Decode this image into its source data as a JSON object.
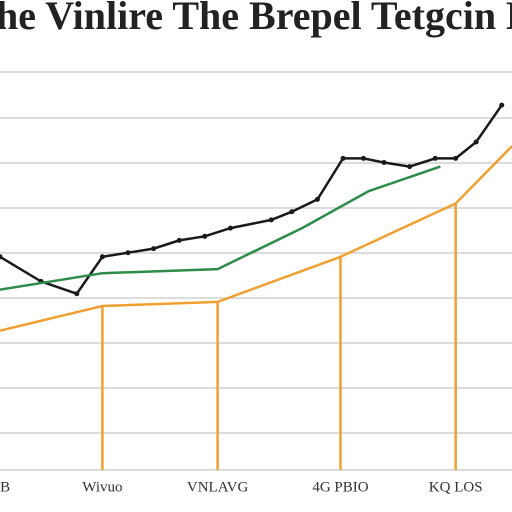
{
  "chart_data": {
    "type": "line",
    "title": "he Vinlire The Brepel Tetgcin B",
    "xlim": [
      0,
      10
    ],
    "xticks": [
      {
        "value": 0.1,
        "label": "B"
      },
      {
        "value": 2,
        "label": "Wivuo"
      },
      {
        "value": 4.25,
        "label": "VNLAVG"
      },
      {
        "value": 6.65,
        "label": "4G PBIO"
      },
      {
        "value": 8.9,
        "label": "KQ LOS"
      }
    ],
    "ylim": [
      0,
      10
    ],
    "grid": true,
    "series": [
      {
        "color": "#1a1a1a",
        "markers": true,
        "x": [
          0,
          0.8,
          1.5,
          2,
          2.5,
          3,
          3.5,
          4,
          4.5,
          5.3,
          5.7,
          6.2,
          6.7,
          7.1,
          7.5,
          8,
          8.5,
          8.9,
          9.3,
          9.8
        ],
        "values": [
          5.2,
          4.6,
          4.3,
          5.2,
          5.3,
          5.4,
          5.6,
          5.7,
          5.9,
          6.1,
          6.3,
          6.6,
          7.6,
          7.6,
          7.5,
          7.4,
          7.6,
          7.6,
          8,
          8.9
        ]
      },
      {
        "color": "#2e8b4a",
        "x": [
          0,
          2,
          4.25,
          5.9,
          7.2,
          8.6
        ],
        "values": [
          4.4,
          4.8,
          4.9,
          5.9,
          6.8,
          7.4
        ]
      },
      {
        "color": "#f0a030",
        "drop_lines": true,
        "x": [
          0,
          2,
          4.25,
          6.65,
          8.9,
          10
        ],
        "values": [
          3.4,
          4,
          4.1,
          5.2,
          6.5,
          7.9
        ]
      }
    ]
  }
}
